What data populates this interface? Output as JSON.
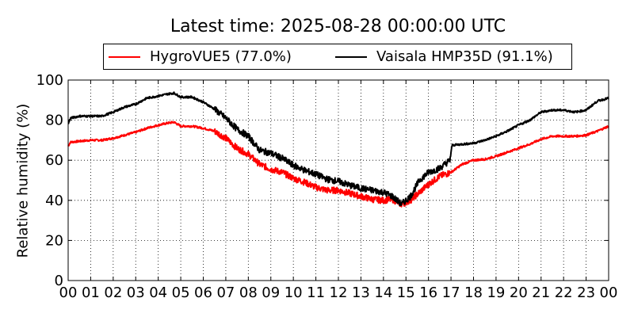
{
  "chart_data": {
    "type": "line",
    "title": "Latest time: 2025-08-28 00:00:00 UTC",
    "xlabel": "",
    "ylabel": "Relative humidity (%)",
    "xlim": [
      0,
      24
    ],
    "ylim": [
      0,
      100
    ],
    "x_ticks": [
      "00",
      "01",
      "02",
      "03",
      "04",
      "05",
      "06",
      "07",
      "08",
      "09",
      "10",
      "11",
      "12",
      "13",
      "14",
      "15",
      "16",
      "17",
      "18",
      "19",
      "20",
      "21",
      "22",
      "23",
      "00"
    ],
    "y_ticks": [
      0,
      20,
      40,
      60,
      80,
      100
    ],
    "grid": true,
    "legend_position": "top-center",
    "series": [
      {
        "name": "HygroVUE5 (77.0%)",
        "color": "#ff0000",
        "x": [
          0,
          0.1,
          0.5,
          1,
          1.5,
          2,
          2.5,
          3,
          3.5,
          4,
          4.4,
          4.7,
          5,
          5.5,
          6,
          6.5,
          7,
          7.5,
          8,
          8.5,
          9,
          9.5,
          10,
          10.5,
          11,
          11.5,
          12,
          12.5,
          13,
          13.5,
          14,
          14.4,
          14.8,
          15.2,
          15.6,
          16,
          16.5,
          17,
          17.5,
          18,
          18.5,
          19,
          19.5,
          20,
          20.5,
          21,
          21.5,
          22,
          22.5,
          23,
          23.5,
          24
        ],
        "y": [
          67,
          69,
          69.5,
          70,
          70,
          71,
          72.5,
          74,
          76,
          77.5,
          78.5,
          79,
          77,
          77,
          76,
          74.5,
          71,
          66,
          63,
          58,
          55.5,
          54,
          51,
          49,
          46.5,
          45,
          45,
          43.5,
          42,
          40.5,
          40,
          40.5,
          38,
          40,
          44,
          48,
          52,
          54,
          58,
          60,
          60.5,
          62,
          64,
          66,
          68,
          70.5,
          72,
          72,
          72,
          72.5,
          74.5,
          77
        ]
      },
      {
        "name": "Vaisala HMP35D (91.1%)",
        "color": "#000000",
        "x": [
          0,
          0.1,
          0.5,
          1,
          1.5,
          2,
          2.5,
          3,
          3.5,
          4,
          4.4,
          4.7,
          5,
          5.5,
          6,
          6.5,
          7,
          7.5,
          8,
          8.5,
          9,
          9.5,
          10,
          10.5,
          11,
          11.5,
          12,
          12.5,
          13,
          13.5,
          14,
          14.4,
          14.8,
          15.2,
          15.6,
          16,
          16.5,
          16.95,
          17.05,
          17.5,
          18,
          18.5,
          19,
          19.5,
          20,
          20.5,
          21,
          21.5,
          22,
          22.5,
          23,
          23.5,
          24
        ],
        "y": [
          78,
          81,
          82,
          82,
          82,
          84,
          86.5,
          88,
          91,
          92,
          93,
          93.5,
          91.5,
          91.5,
          89,
          85.5,
          81,
          75.5,
          72,
          65,
          63.5,
          61,
          57.5,
          55,
          53,
          50.5,
          49.5,
          47.5,
          46,
          45,
          44,
          42,
          38,
          42,
          50,
          54,
          56,
          60,
          67.5,
          68,
          68.5,
          70,
          72,
          74.5,
          77.5,
          80,
          84,
          85,
          85,
          84,
          85,
          89.5,
          91
        ]
      }
    ]
  }
}
